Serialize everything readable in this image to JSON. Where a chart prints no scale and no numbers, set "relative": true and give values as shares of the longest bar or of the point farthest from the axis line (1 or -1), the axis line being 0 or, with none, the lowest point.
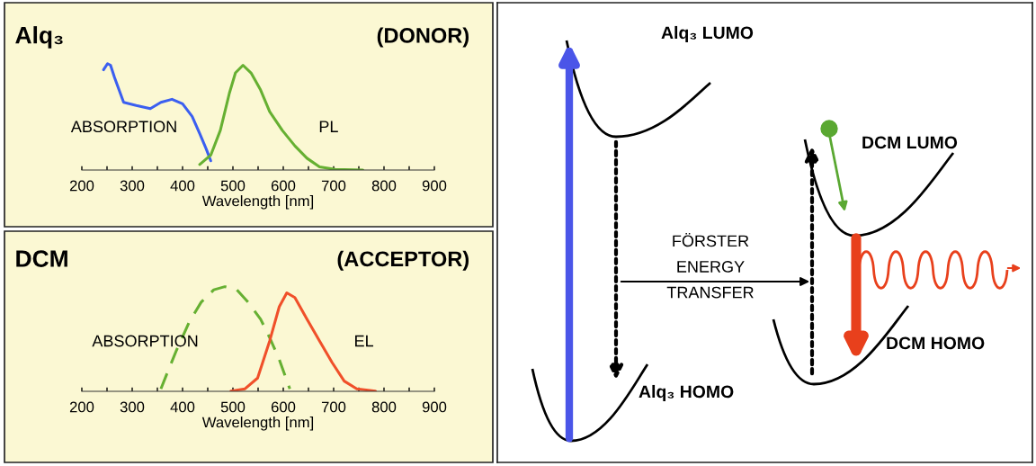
{
  "chart_data": [
    {
      "type": "line",
      "title": "Alq₃",
      "subtitle": "(DONOR)",
      "xlabel": "Wavelength [nm]",
      "relative": true,
      "xlim": [
        200,
        900
      ],
      "xticks": [
        200,
        {
          "value": 250,
          "label": null
        },
        300,
        {
          "value": 350,
          "label": null
        },
        400,
        {
          "value": 450,
          "label": null
        },
        500,
        {
          "value": 550,
          "label": null
        },
        600,
        {
          "value": 650,
          "label": null
        },
        700,
        {
          "value": 750,
          "label": null
        },
        800,
        {
          "value": 850,
          "label": null
        },
        900
      ],
      "series": [
        {
          "name": "ABSORPTION",
          "color": "#3b5ff0",
          "line_style": "solid",
          "x": [
            243,
            251,
            257,
            265,
            274,
            283,
            308,
            336,
            357,
            379,
            400,
            419,
            434,
            447,
            456
          ],
          "values": [
            0.942,
            1.0,
            0.985,
            0.869,
            0.752,
            0.636,
            0.606,
            0.577,
            0.636,
            0.665,
            0.622,
            0.504,
            0.344,
            0.198,
            0.087
          ]
        },
        {
          "name": "PL",
          "color": "#66b032",
          "line_style": "solid",
          "x": [
            434,
            456,
            475,
            493,
            505,
            520,
            536,
            555,
            573,
            598,
            623,
            647,
            672,
            703,
            758
          ],
          "values": [
            0.052,
            0.14,
            0.373,
            0.723,
            0.913,
            0.985,
            0.913,
            0.752,
            0.548,
            0.373,
            0.227,
            0.111,
            0.029,
            0.006,
            0
          ]
        }
      ]
    },
    {
      "type": "line",
      "title": "DCM",
      "subtitle": "(ACCEPTOR)",
      "xlabel": "Wavelength [nm]",
      "relative": true,
      "xlim": [
        200,
        900
      ],
      "xticks": [
        200,
        {
          "value": 250,
          "label": null
        },
        300,
        {
          "value": 350,
          "label": null
        },
        400,
        {
          "value": 450,
          "label": null
        },
        500,
        {
          "value": 550,
          "label": null
        },
        600,
        {
          "value": 650,
          "label": null
        },
        700,
        {
          "value": 750,
          "label": null
        },
        800,
        {
          "value": 850,
          "label": null
        },
        900
      ],
      "series": [
        {
          "name": "ABSORPTION",
          "color": "#66b032",
          "line_style": "dashed",
          "x": [
            357,
            373,
            388,
            413,
            437,
            462,
            484,
            508,
            530,
            555,
            573,
            592,
            613
          ],
          "values": [
            0.024,
            0.216,
            0.393,
            0.66,
            0.852,
            0.97,
            1.0,
            0.97,
            0.852,
            0.689,
            0.512,
            0.305,
            0.024
          ]
        },
        {
          "name": "EL",
          "color": "#f0502a",
          "line_style": "solid",
          "x": [
            496,
            524,
            549,
            573,
            592,
            607,
            623,
            647,
            672,
            697,
            721,
            746,
            783
          ],
          "values": [
            0.003,
            0.024,
            0.127,
            0.482,
            0.808,
            0.941,
            0.896,
            0.689,
            0.482,
            0.275,
            0.098,
            0.024,
            0.003
          ]
        }
      ]
    },
    {
      "type": "other",
      "annotations": [
        "Alq₃ LUMO",
        "DCM LUMO",
        "FÖRSTER\nENERGY\nTRANSFER",
        "Alq₃ HOMO",
        "DCM HOMO"
      ]
    }
  ]
}
